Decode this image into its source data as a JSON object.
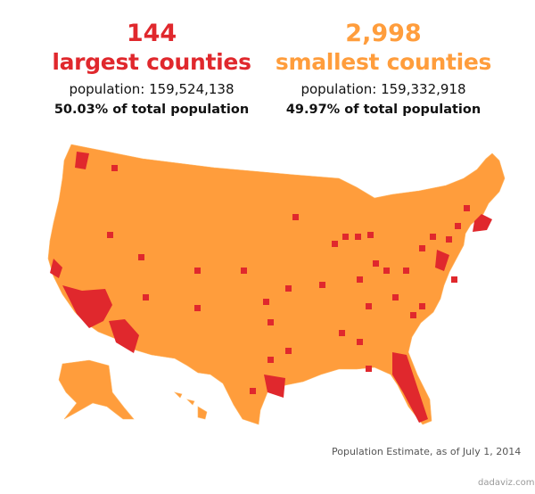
{
  "largest": {
    "count": "144",
    "label": "largest counties",
    "population": "population: 159,524,138",
    "share": "50.03% of total population",
    "color": "#e0282d"
  },
  "smallest": {
    "count": "2,998",
    "label": "smallest counties",
    "population": "population: 159,332,918",
    "share": "49.97% of total population",
    "color": "#ff9d3c"
  },
  "note": "Population Estimate, as of July 1, 2014",
  "credit": "dadaviz.com"
}
